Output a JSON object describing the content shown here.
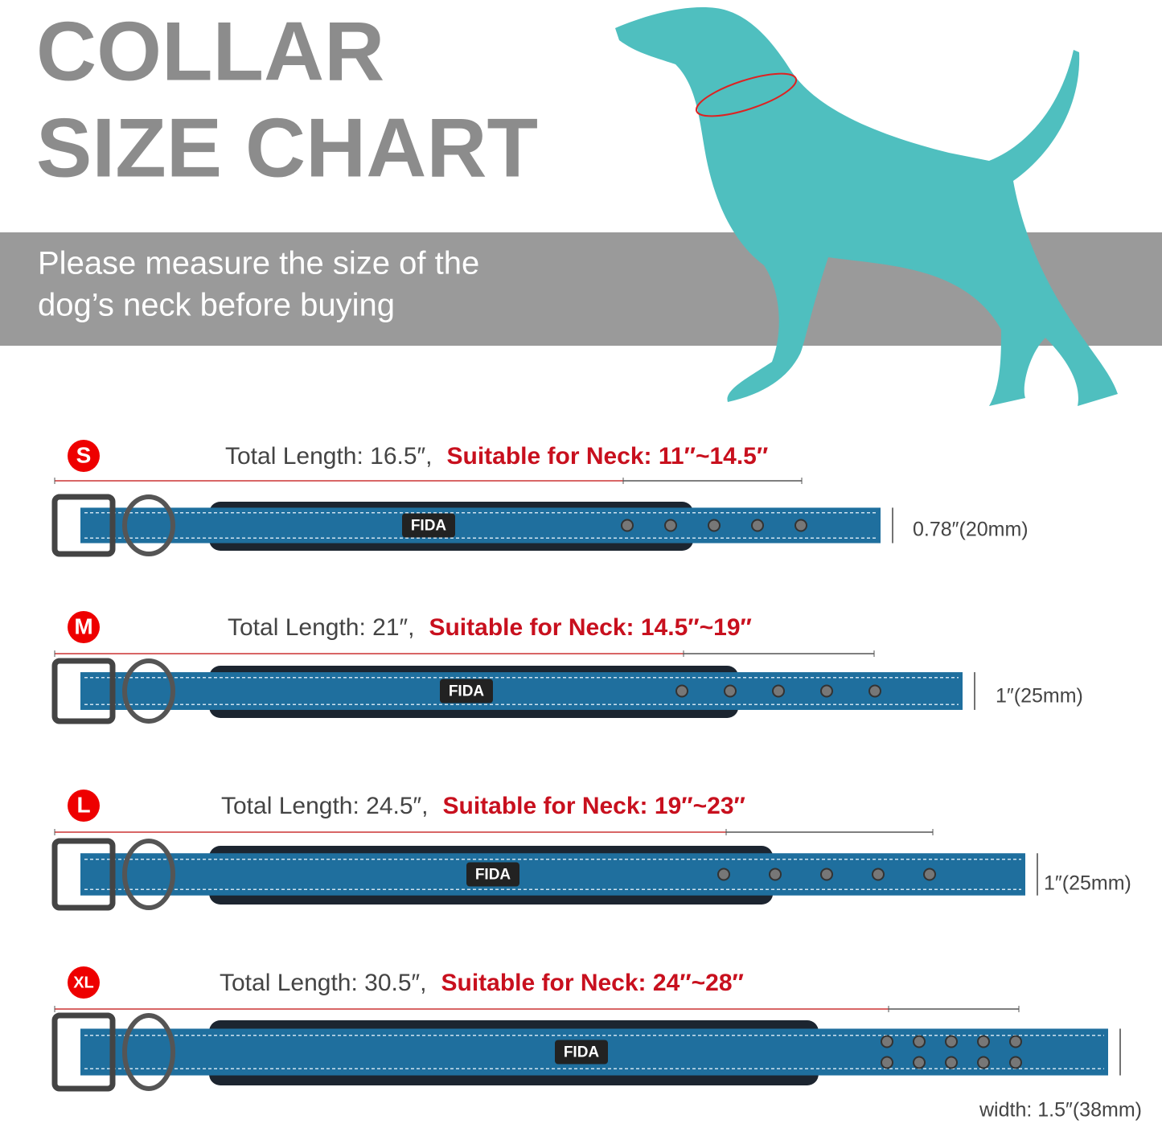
{
  "header": {
    "title": [
      "COLLAR",
      "SIZE CHART"
    ],
    "subtitle": [
      "Please measure the size of the",
      "dog’s neck before buying"
    ]
  },
  "sizes": [
    {
      "badge": "S",
      "total": "Total Length: 16.5″,",
      "suitable": "Suitable for Neck: 11″~14.5″",
      "width": "0.78″(20mm)",
      "brand": "FIDA"
    },
    {
      "badge": "M",
      "total": "Total Length: 21″,",
      "suitable": "Suitable for Neck: 14.5″~19″",
      "width": "1″(25mm)",
      "brand": "FIDA"
    },
    {
      "badge": "L",
      "total": "Total Length: 24.5″,",
      "suitable": "Suitable for Neck: 19″~23″",
      "width": "1″(25mm)",
      "brand": "FIDA"
    },
    {
      "badge": "XL",
      "total": "Total Length: 30.5″,",
      "suitable": "Suitable for Neck: 24″~28″",
      "width": "width: 1.5″(38mm)",
      "brand": "FIDA"
    }
  ]
}
